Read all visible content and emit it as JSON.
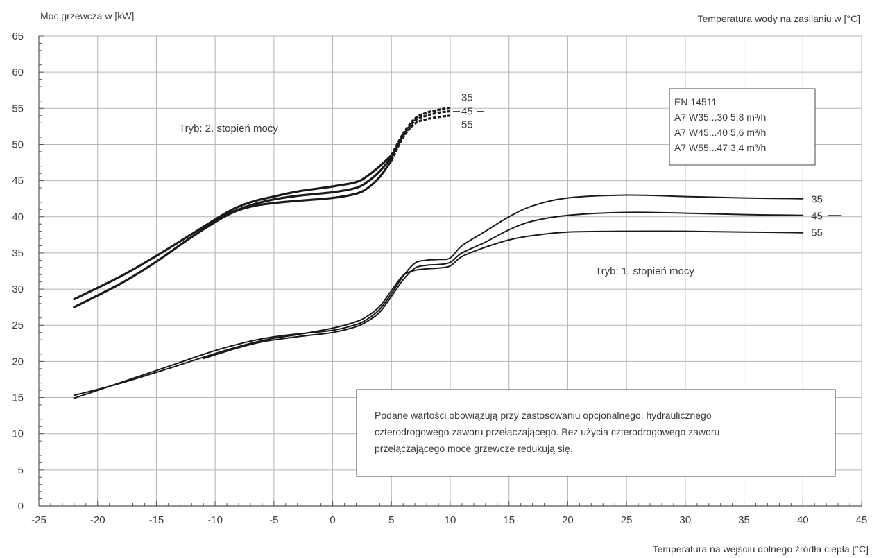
{
  "chart_data": {
    "type": "line",
    "ylabel": "Moc grzewcza w [kW]",
    "xlabel": "Temperatura na wejściu dolnego źródła ciepła [°C]",
    "right_label": "Temperatura wody na zasilaniu w [°C]",
    "xlim": [
      -25,
      45
    ],
    "ylim": [
      0,
      65
    ],
    "x_ticks": [
      -25,
      -20,
      -15,
      -10,
      -5,
      0,
      5,
      10,
      15,
      20,
      25,
      30,
      35,
      40,
      45
    ],
    "y_ticks": [
      0,
      5,
      10,
      15,
      20,
      25,
      30,
      35,
      40,
      45,
      50,
      55,
      60,
      65
    ],
    "grid": true,
    "series": [
      {
        "group": "stage2",
        "name": "35",
        "x": [
          -22,
          -18,
          -15,
          -12,
          -9,
          -7,
          -5,
          -3,
          0,
          2,
          3,
          4,
          5,
          6,
          7,
          8,
          9,
          10
        ],
        "y": [
          28.6,
          31.8,
          34.6,
          37.6,
          40.6,
          42.0,
          42.8,
          43.5,
          44.2,
          44.8,
          45.7,
          47.0,
          48.5,
          51.5,
          53.6,
          54.4,
          54.8,
          55.1
        ]
      },
      {
        "group": "stage2",
        "name": "45",
        "x": [
          -11,
          -9,
          -7,
          -5,
          -3,
          0,
          2,
          3,
          4,
          5,
          6,
          7,
          8,
          9,
          10
        ],
        "y": [
          38.5,
          40.3,
          41.6,
          42.4,
          42.9,
          43.4,
          44.0,
          44.9,
          46.3,
          48.2,
          51.2,
          53.3,
          54.0,
          54.4,
          54.6
        ]
      },
      {
        "group": "stage2",
        "name": "55",
        "x": [
          -22,
          -18,
          -15,
          -12,
          -9,
          -7,
          -5,
          -3,
          0,
          2,
          3,
          4,
          5,
          6,
          7,
          8,
          9,
          10
        ],
        "y": [
          27.5,
          30.8,
          33.8,
          37.2,
          40.2,
          41.4,
          41.9,
          42.2,
          42.6,
          43.2,
          44.0,
          45.5,
          47.8,
          51.0,
          52.9,
          53.5,
          53.8,
          54.0
        ]
      },
      {
        "group": "stage1",
        "name": "35",
        "x": [
          -22,
          -18,
          -14,
          -10,
          -7,
          -5,
          -3,
          0,
          2,
          3,
          4,
          5,
          6,
          7,
          8,
          9,
          10,
          11,
          13,
          15,
          17,
          20,
          25,
          30,
          35,
          40
        ],
        "y": [
          14.9,
          17.1,
          19.3,
          21.5,
          22.8,
          23.4,
          23.8,
          24.3,
          25.1,
          25.9,
          27.2,
          29.4,
          31.8,
          33.6,
          34.0,
          34.1,
          34.3,
          36.0,
          38.0,
          40.0,
          41.5,
          42.6,
          43.0,
          42.8,
          42.6,
          42.5
        ]
      },
      {
        "group": "stage1",
        "name": "45",
        "x": [
          -11,
          -8,
          -6,
          -4,
          -2,
          0,
          2,
          3,
          4,
          5,
          6,
          7,
          8,
          9,
          10,
          11,
          13,
          15,
          17,
          20,
          25,
          30,
          35,
          40
        ],
        "y": [
          20.4,
          21.9,
          22.7,
          23.2,
          23.6,
          24.0,
          24.8,
          25.6,
          26.8,
          29.0,
          31.3,
          32.9,
          33.3,
          33.4,
          33.7,
          35.0,
          36.5,
          38.2,
          39.4,
          40.2,
          40.6,
          40.5,
          40.3,
          40.2
        ]
      },
      {
        "group": "stage1",
        "name": "55",
        "x": [
          -22,
          -18,
          -14,
          -10,
          -7,
          -5,
          -3,
          0,
          2,
          3,
          4,
          5,
          6,
          7,
          8,
          9,
          10,
          11,
          13,
          15,
          17,
          20,
          25,
          30,
          35,
          40
        ],
        "y": [
          15.3,
          17.0,
          19.0,
          21.1,
          22.5,
          23.2,
          23.7,
          24.6,
          25.5,
          26.3,
          27.6,
          29.8,
          31.9,
          32.6,
          32.8,
          32.9,
          33.2,
          34.5,
          35.8,
          36.8,
          37.4,
          37.9,
          38.0,
          38.0,
          37.9,
          37.8
        ]
      }
    ],
    "stage2_dashed_from_x": 5,
    "annotations": {
      "stage2_mode": "Tryb: 2. stopień mocy",
      "stage1_mode": "Tryb: 1. stopień mocy",
      "stage2_end_labels": [
        "35",
        "45",
        "55"
      ],
      "stage1_end_labels": [
        "35",
        "45",
        "55"
      ]
    },
    "legend_box": {
      "lines": [
        "EN 14511",
        "A7 W35...30 5,8 m³/h",
        "A7 W45...40 5,6 m³/h",
        "A7 W55...47 3,4 m³/h"
      ]
    },
    "note_box": {
      "lines": [
        "Podane wartości obowiązują przy zastosowaniu opcjonalnego, hydraulicznego",
        "czterodrogowego zaworu przełączającego. Bez użycia czterodrogowego zaworu",
        "przełączającego moce grzewcze redukują się."
      ]
    },
    "colors": {
      "line": "#1a1a1a",
      "grid": "#b5b5b5",
      "axis": "#555555"
    }
  }
}
